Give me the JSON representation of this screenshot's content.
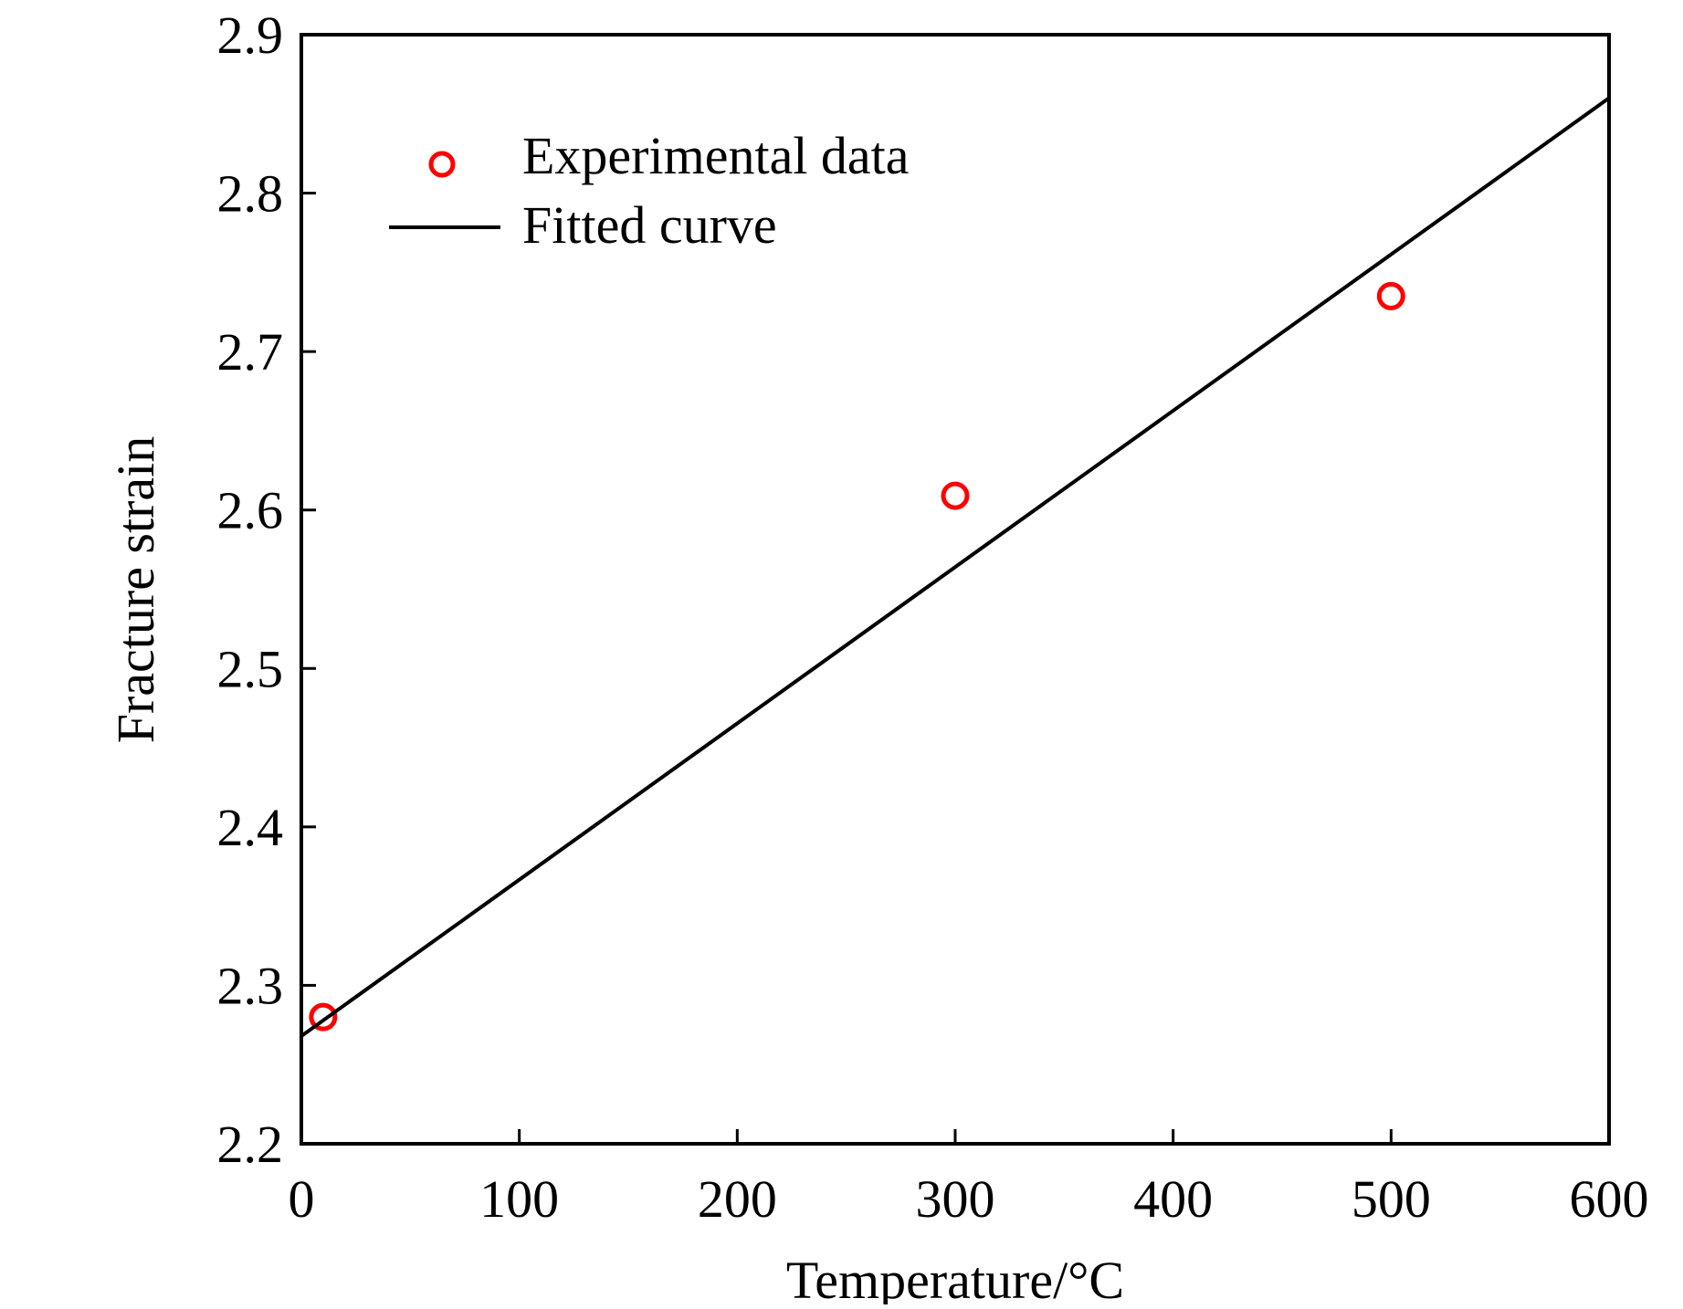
{
  "chart_data": {
    "type": "scatter",
    "title": "",
    "xlabel": "Temperature/°C",
    "ylabel": "Fracture strain",
    "xlim": [
      0,
      600
    ],
    "ylim": [
      2.2,
      2.9
    ],
    "x_ticks": [
      "0",
      "100",
      "200",
      "300",
      "400",
      "500",
      "600"
    ],
    "y_ticks": [
      "2.2",
      "2.3",
      "2.4",
      "2.5",
      "2.6",
      "2.7",
      "2.8",
      "2.9"
    ],
    "grid": false,
    "legend_position": "top-left",
    "series": [
      {
        "name": "Experimental data",
        "kind": "scatter",
        "marker": "open-circle",
        "color": "#ff0000",
        "points": [
          {
            "x": 10,
            "y": 2.28
          },
          {
            "x": 300,
            "y": 2.609
          },
          {
            "x": 500,
            "y": 2.735
          }
        ]
      },
      {
        "name": "Fitted curve",
        "kind": "line",
        "color": "#000000",
        "points": [
          {
            "x": 0,
            "y": 2.268
          },
          {
            "x": 600,
            "y": 2.86
          }
        ]
      }
    ]
  }
}
